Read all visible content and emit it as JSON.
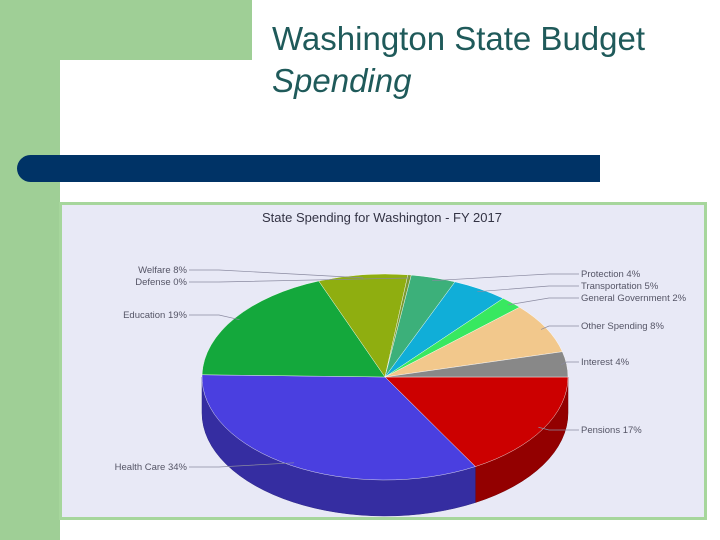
{
  "slide": {
    "title_line1": "Washington State Budget",
    "title_line2": "Spending"
  },
  "chart_data": {
    "type": "pie",
    "title": "State Spending for Washington - FY 2017",
    "slices": [
      {
        "label": "Pensions 17%",
        "value": 17,
        "color": "#cc0000",
        "side": "right"
      },
      {
        "label": "Health Care 34%",
        "value": 34,
        "color": "#4a3fe0",
        "side": "left"
      },
      {
        "label": "Education 19%",
        "value": 19,
        "color": "#14a83c",
        "side": "left"
      },
      {
        "label": "Welfare 8%",
        "value": 8,
        "color": "#8fae10",
        "side": "left"
      },
      {
        "label": "Defense 0%",
        "value": 0.3,
        "color": "#7a9a30",
        "side": "left"
      },
      {
        "label": "Protection 4%",
        "value": 4,
        "color": "#3cb07a",
        "side": "right"
      },
      {
        "label": "Transportation 5%",
        "value": 5,
        "color": "#10aed8",
        "side": "right"
      },
      {
        "label": "General Government 2%",
        "value": 2,
        "color": "#38e860",
        "side": "right"
      },
      {
        "label": "Other Spending 8%",
        "value": 8,
        "color": "#f2c88c",
        "side": "right"
      },
      {
        "label": "Interest 4%",
        "value": 4,
        "color": "#888888",
        "side": "right"
      }
    ]
  }
}
